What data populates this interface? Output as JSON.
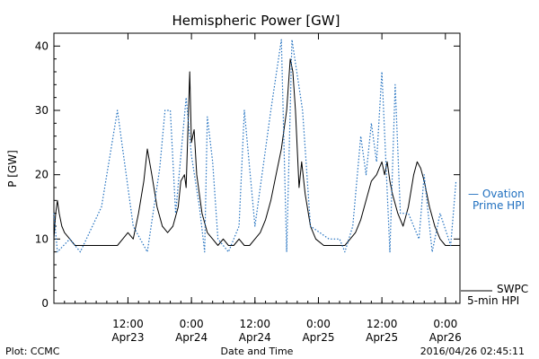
{
  "chart_data": {
    "type": "line",
    "title": "Hemispheric Power [GW]",
    "ylabel": "P [GW]",
    "xlabel": "Date and Time",
    "ylim": [
      0,
      42
    ],
    "xlim": [
      "2016-04-22 22:00",
      "2016-04-26 02:45"
    ],
    "yticks": [
      0,
      10,
      20,
      30,
      40
    ],
    "xticks": [
      {
        "t": "2016-04-23 12:00",
        "label1": "12:00",
        "label2": "Apr23"
      },
      {
        "t": "2016-04-24 00:00",
        "label1": "0:00",
        "label2": "Apr24"
      },
      {
        "t": "2016-04-24 12:00",
        "label1": "12:00",
        "label2": "Apr24"
      },
      {
        "t": "2016-04-25 00:00",
        "label1": "0:00",
        "label2": "Apr25"
      },
      {
        "t": "2016-04-25 12:00",
        "label1": "12:00",
        "label2": "Apr25"
      },
      {
        "t": "2016-04-26 00:00",
        "label1": "0:00",
        "label2": "Apr26"
      }
    ],
    "series": [
      {
        "name": "SWPC 5-min HPI",
        "color": "#000000",
        "style": "solid",
        "points": [
          [
            "2016-04-22 22:00",
            10
          ],
          [
            "2016-04-22 22:20",
            14
          ],
          [
            "2016-04-22 22:40",
            16
          ],
          [
            "2016-04-22 23:00",
            14
          ],
          [
            "2016-04-22 23:30",
            12
          ],
          [
            "2016-04-23 00:00",
            11
          ],
          [
            "2016-04-23 01:00",
            10
          ],
          [
            "2016-04-23 02:00",
            9
          ],
          [
            "2016-04-23 04:00",
            9
          ],
          [
            "2016-04-23 06:00",
            9
          ],
          [
            "2016-04-23 08:00",
            9
          ],
          [
            "2016-04-23 10:00",
            9
          ],
          [
            "2016-04-23 11:00",
            10
          ],
          [
            "2016-04-23 12:00",
            11
          ],
          [
            "2016-04-23 13:00",
            10
          ],
          [
            "2016-04-23 14:00",
            14
          ],
          [
            "2016-04-23 15:00",
            19
          ],
          [
            "2016-04-23 15:40",
            24
          ],
          [
            "2016-04-23 16:30",
            20
          ],
          [
            "2016-04-23 17:30",
            15
          ],
          [
            "2016-04-23 18:30",
            12
          ],
          [
            "2016-04-23 19:30",
            11
          ],
          [
            "2016-04-23 20:30",
            12
          ],
          [
            "2016-04-23 21:30",
            15
          ],
          [
            "2016-04-23 22:00",
            19
          ],
          [
            "2016-04-23 22:40",
            20
          ],
          [
            "2016-04-23 23:00",
            18
          ],
          [
            "2016-04-23 23:20",
            27
          ],
          [
            "2016-04-23 23:40",
            36
          ],
          [
            "2016-04-24 00:00",
            25
          ],
          [
            "2016-04-24 00:30",
            27
          ],
          [
            "2016-04-24 01:00",
            20
          ],
          [
            "2016-04-24 02:00",
            14
          ],
          [
            "2016-04-24 03:00",
            11
          ],
          [
            "2016-04-24 04:00",
            10
          ],
          [
            "2016-04-24 05:00",
            9
          ],
          [
            "2016-04-24 06:00",
            10
          ],
          [
            "2016-04-24 07:00",
            9
          ],
          [
            "2016-04-24 08:00",
            9
          ],
          [
            "2016-04-24 09:00",
            10
          ],
          [
            "2016-04-24 10:00",
            9
          ],
          [
            "2016-04-24 11:00",
            9
          ],
          [
            "2016-04-24 12:00",
            10
          ],
          [
            "2016-04-24 13:00",
            11
          ],
          [
            "2016-04-24 14:00",
            13
          ],
          [
            "2016-04-24 15:00",
            16
          ],
          [
            "2016-04-24 16:00",
            20
          ],
          [
            "2016-04-24 17:00",
            24
          ],
          [
            "2016-04-24 18:00",
            30
          ],
          [
            "2016-04-24 18:40",
            38
          ],
          [
            "2016-04-24 19:10",
            36
          ],
          [
            "2016-04-24 19:40",
            30
          ],
          [
            "2016-04-24 20:20",
            18
          ],
          [
            "2016-04-24 20:50",
            22
          ],
          [
            "2016-04-24 21:30",
            17
          ],
          [
            "2016-04-24 22:30",
            12
          ],
          [
            "2016-04-24 23:30",
            10
          ],
          [
            "2016-04-25 01:00",
            9
          ],
          [
            "2016-04-25 03:00",
            9
          ],
          [
            "2016-04-25 05:00",
            9
          ],
          [
            "2016-04-25 06:00",
            10
          ],
          [
            "2016-04-25 07:00",
            11
          ],
          [
            "2016-04-25 08:00",
            13
          ],
          [
            "2016-04-25 09:00",
            16
          ],
          [
            "2016-04-25 10:00",
            19
          ],
          [
            "2016-04-25 11:00",
            20
          ],
          [
            "2016-04-25 12:00",
            22
          ],
          [
            "2016-04-25 12:30",
            20
          ],
          [
            "2016-04-25 13:00",
            22
          ],
          [
            "2016-04-25 13:30",
            19
          ],
          [
            "2016-04-25 14:00",
            17
          ],
          [
            "2016-04-25 15:00",
            14
          ],
          [
            "2016-04-25 16:00",
            12
          ],
          [
            "2016-04-25 17:00",
            15
          ],
          [
            "2016-04-25 18:00",
            20
          ],
          [
            "2016-04-25 18:40",
            22
          ],
          [
            "2016-04-25 19:20",
            21
          ],
          [
            "2016-04-25 20:00",
            19
          ],
          [
            "2016-04-25 21:00",
            15
          ],
          [
            "2016-04-25 22:00",
            12
          ],
          [
            "2016-04-25 23:00",
            10
          ],
          [
            "2016-04-26 00:00",
            9
          ],
          [
            "2016-04-26 02:45",
            9
          ]
        ]
      },
      {
        "name": "Ovation Prime HPI",
        "color": "#1f6fbf",
        "style": "dotted",
        "points": [
          [
            "2016-04-22 22:00",
            14
          ],
          [
            "2016-04-22 22:40",
            8
          ],
          [
            "2016-04-23 01:00",
            10
          ],
          [
            "2016-04-23 03:00",
            8
          ],
          [
            "2016-04-23 07:00",
            15
          ],
          [
            "2016-04-23 10:00",
            30
          ],
          [
            "2016-04-23 13:00",
            12
          ],
          [
            "2016-04-23 15:40",
            8
          ],
          [
            "2016-04-23 18:00",
            21
          ],
          [
            "2016-04-23 19:00",
            30
          ],
          [
            "2016-04-23 20:00",
            30
          ],
          [
            "2016-04-23 21:00",
            14
          ],
          [
            "2016-04-23 23:00",
            32
          ],
          [
            "2016-04-24 00:00",
            23
          ],
          [
            "2016-04-24 01:30",
            15
          ],
          [
            "2016-04-24 02:30",
            8
          ],
          [
            "2016-04-24 03:00",
            29
          ],
          [
            "2016-04-24 04:00",
            22
          ],
          [
            "2016-04-24 05:00",
            10
          ],
          [
            "2016-04-24 07:00",
            8
          ],
          [
            "2016-04-24 09:00",
            12
          ],
          [
            "2016-04-24 10:00",
            30
          ],
          [
            "2016-04-24 12:00",
            12
          ],
          [
            "2016-04-24 15:00",
            30
          ],
          [
            "2016-04-24 17:00",
            41
          ],
          [
            "2016-04-24 18:00",
            8
          ],
          [
            "2016-04-24 19:00",
            41
          ],
          [
            "2016-04-24 21:00",
            30
          ],
          [
            "2016-04-24 22:30",
            12
          ],
          [
            "2016-04-25 02:00",
            10
          ],
          [
            "2016-04-25 04:00",
            10
          ],
          [
            "2016-04-25 05:00",
            8
          ],
          [
            "2016-04-25 06:30",
            12
          ],
          [
            "2016-04-25 08:00",
            26
          ],
          [
            "2016-04-25 09:00",
            20
          ],
          [
            "2016-04-25 10:00",
            28
          ],
          [
            "2016-04-25 11:00",
            22
          ],
          [
            "2016-04-25 12:00",
            36
          ],
          [
            "2016-04-25 13:30",
            8
          ],
          [
            "2016-04-25 14:30",
            34
          ],
          [
            "2016-04-25 15:30",
            14
          ],
          [
            "2016-04-25 17:00",
            14
          ],
          [
            "2016-04-25 19:00",
            10
          ],
          [
            "2016-04-25 20:00",
            20
          ],
          [
            "2016-04-25 21:30",
            8
          ],
          [
            "2016-04-25 23:00",
            14
          ],
          [
            "2016-04-26 01:00",
            9
          ],
          [
            "2016-04-26 02:00",
            19
          ]
        ]
      }
    ],
    "legend": {
      "blue": [
        "— Ovation",
        "Prime HPI"
      ],
      "black": [
        "SWPC",
        "5-min HPI"
      ]
    },
    "footer": {
      "left": "Plot: CCMC",
      "center": "Date and Time",
      "right": "2016/04/26 02:45:11"
    }
  }
}
